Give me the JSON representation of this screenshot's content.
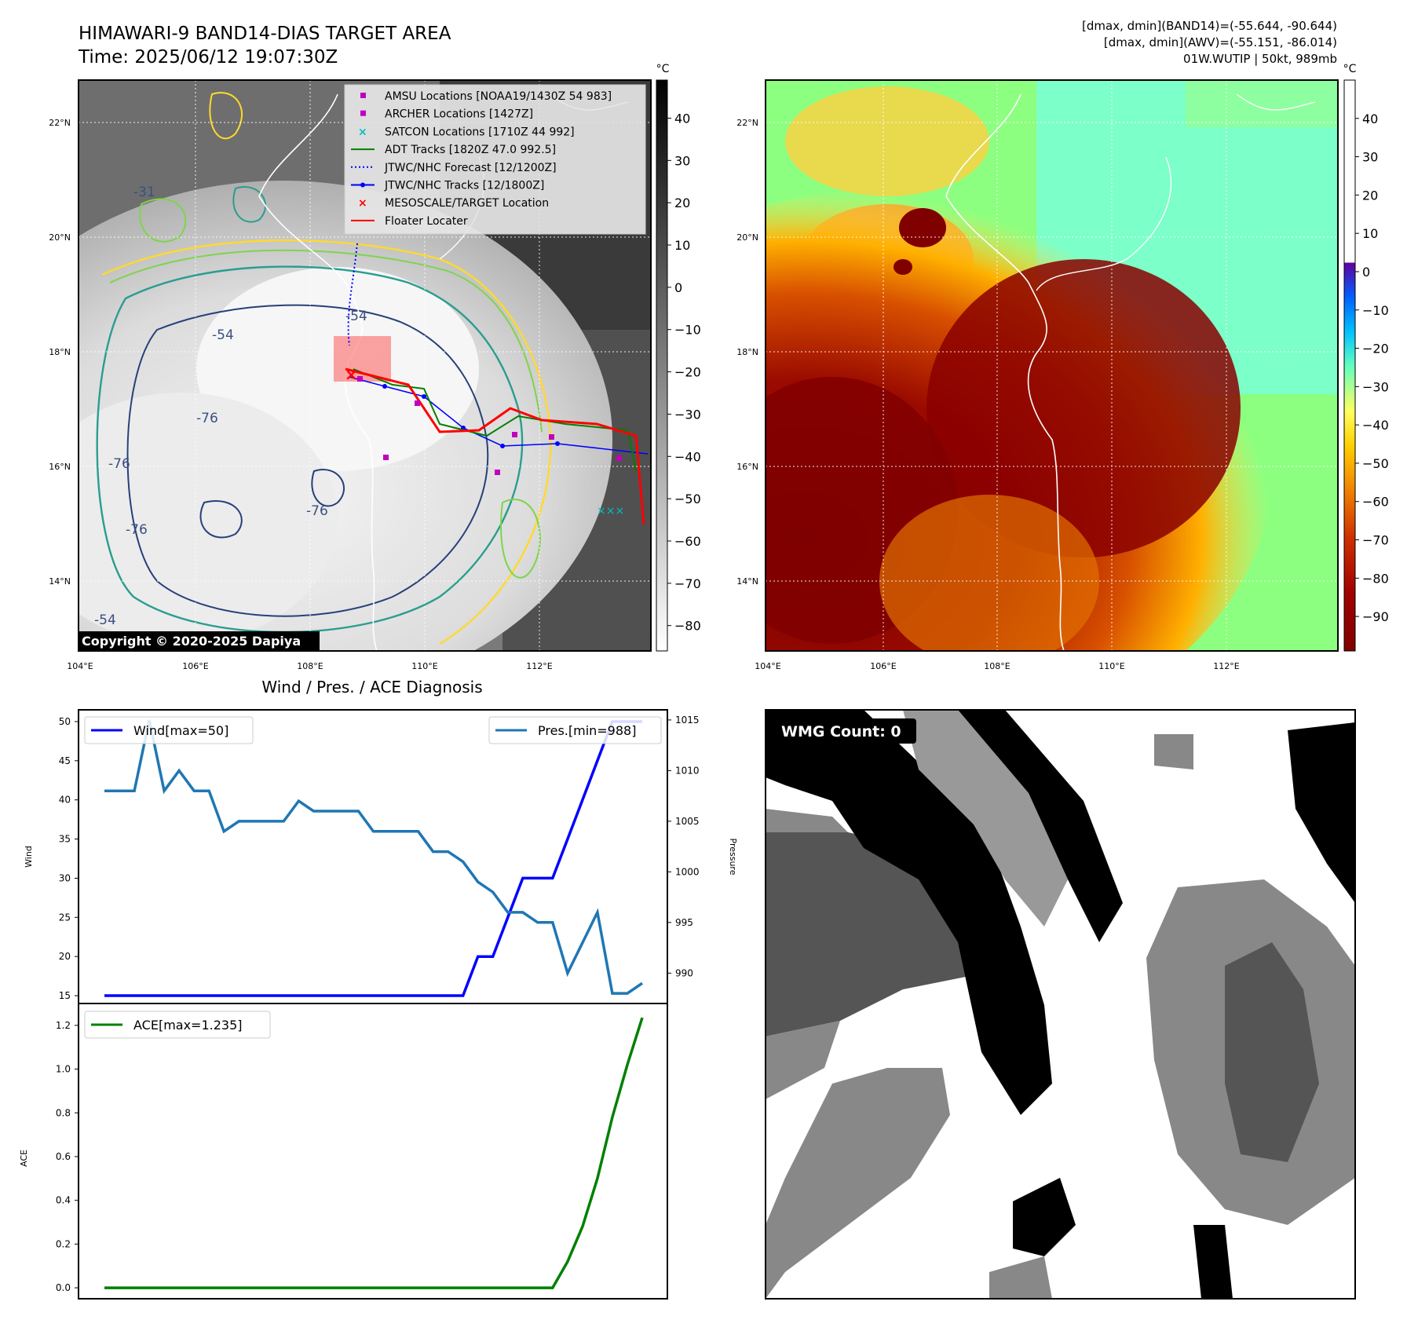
{
  "header": {
    "title_line1": "HIMAWARI-9 BAND14-DIAS TARGET AREA",
    "title_line2": "Time: 2025/06/12 19:07:30Z",
    "info_line1": "[dmax, dmin](BAND14)=(-55.644, -90.644)",
    "info_line2": "[dmax, dmin](AWV)=(-55.151, -86.014)",
    "info_line3": "01W.WUTIP | 50kt, 989mb"
  },
  "maps": {
    "lat_labels": [
      "22°N",
      "20°N",
      "18°N",
      "16°N",
      "14°N"
    ],
    "lon_labels": [
      "104°E",
      "106°E",
      "108°E",
      "110°E",
      "112°E"
    ],
    "copyright": "Copyright © 2020-2025 Dapiya",
    "legend": [
      {
        "label": "AMSU Locations [NOAA19/1430Z 54 983]",
        "color": "#bf00bf",
        "marker": "square"
      },
      {
        "label": "ARCHER Locations [1427Z]",
        "color": "#bf00bf",
        "marker": "square"
      },
      {
        "label": "SATCON Locations [1710Z 44 992]",
        "color": "#00bfbf",
        "marker": "x"
      },
      {
        "label": "ADT Tracks [1820Z 47.0 992.5]",
        "color": "#008000",
        "marker": "line"
      },
      {
        "label": "JTWC/NHC Forecast [12/1200Z]",
        "color": "#0000ff",
        "marker": "dotted"
      },
      {
        "label": "JTWC/NHC Tracks [12/1800Z]",
        "color": "#0000ff",
        "marker": "line-dot"
      },
      {
        "label": "MESOSCALE/TARGET Location",
        "color": "#ff0000",
        "marker": "x"
      },
      {
        "label": "Floater Locater",
        "color": "#ff0000",
        "marker": "line"
      }
    ],
    "contour_labels": [
      "-54",
      "-76",
      "-76",
      "-76",
      "-76",
      "-54",
      "-54",
      "-31"
    ],
    "colorbar_unit": "°C",
    "left_colorbar_ticks": [
      "40",
      "30",
      "20",
      "10",
      "0",
      "−10",
      "−20",
      "−30",
      "−40",
      "−50",
      "−60",
      "−70",
      "−80"
    ],
    "right_colorbar_ticks": [
      "40",
      "30",
      "20",
      "10",
      "0",
      "−10",
      "−20",
      "−30",
      "−40",
      "−50",
      "−60",
      "−70",
      "−80",
      "−90"
    ],
    "colors": {
      "accent_red": "#ff0000",
      "track_blue": "#0000ff",
      "adt_green": "#008000",
      "dark_red": "#800000"
    }
  },
  "chart_data": [
    {
      "type": "line",
      "title": "Wind / Pres. / ACE Diagnosis",
      "ylabel": "Wind",
      "ylabel_right": "Pressure",
      "ylim": [
        14,
        51.5
      ],
      "ylim_right": [
        987,
        1016
      ],
      "yticks": [
        "50",
        "45",
        "40",
        "35",
        "30",
        "25",
        "20",
        "15"
      ],
      "yticks_right": [
        "1015",
        "1010",
        "1005",
        "1000",
        "995",
        "990"
      ],
      "series": [
        {
          "name": "Wind[max=50]",
          "color": "#0000ff",
          "values": [
            15,
            15,
            15,
            15,
            15,
            15,
            15,
            15,
            15,
            15,
            15,
            15,
            15,
            15,
            15,
            15,
            15,
            15,
            15,
            15,
            15,
            15,
            15,
            15,
            15,
            20,
            20,
            25,
            30,
            30,
            30,
            35,
            40,
            45,
            50,
            50,
            50
          ]
        },
        {
          "name": "Pres.[min=988]",
          "color": "#1f77b4",
          "values": [
            1008,
            1008,
            1008,
            1015,
            1008,
            1010,
            1008,
            1008,
            1004,
            1005,
            1005,
            1005,
            1005,
            1007,
            1006,
            1006,
            1006,
            1006,
            1004,
            1004,
            1004,
            1004,
            1002,
            1002,
            1001,
            999,
            998,
            996,
            996,
            995,
            995,
            990,
            993,
            996,
            988,
            988,
            989
          ]
        }
      ]
    },
    {
      "type": "line",
      "ylabel": "ACE",
      "ylim": [
        -0.05,
        1.3
      ],
      "yticks": [
        "1.2",
        "1.0",
        "0.8",
        "0.6",
        "0.4",
        "0.2",
        "0.0"
      ],
      "series": [
        {
          "name": "ACE[max=1.235]",
          "color": "#008000",
          "values": [
            0,
            0,
            0,
            0,
            0,
            0,
            0,
            0,
            0,
            0,
            0,
            0,
            0,
            0,
            0,
            0,
            0,
            0,
            0,
            0,
            0,
            0,
            0,
            0,
            0,
            0,
            0,
            0,
            0,
            0,
            0,
            0.12,
            0.28,
            0.5,
            0.78,
            1.02,
            1.235
          ]
        }
      ]
    }
  ],
  "wmg": {
    "count_label": "WMG Count: 0"
  }
}
